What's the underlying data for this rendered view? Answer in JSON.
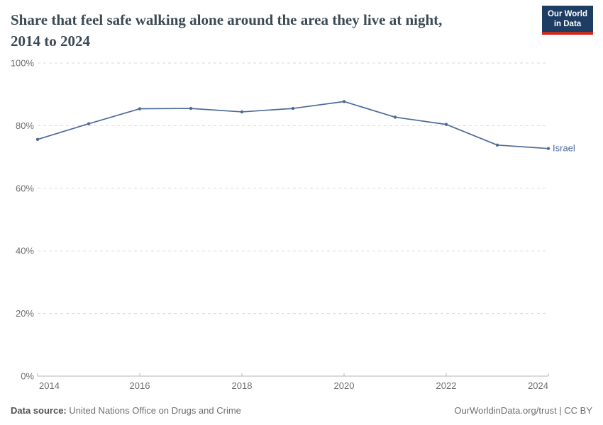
{
  "header": {
    "title_line1": "Share that feel safe walking alone around the area they live at night,",
    "title_line2": "2014 to 2024",
    "logo": {
      "line1": "Our World",
      "line2": "in Data"
    }
  },
  "chart_data": {
    "type": "line",
    "title": "Share that feel safe walking alone around the area they live at night, 2014 to 2024",
    "x": [
      2014,
      2015,
      2016,
      2017,
      2018,
      2019,
      2020,
      2021,
      2022,
      2023,
      2024
    ],
    "series": [
      {
        "name": "Israel",
        "values": [
          75.6,
          80.6,
          85.4,
          85.5,
          84.4,
          85.5,
          87.7,
          82.7,
          80.4,
          73.8,
          72.7
        ],
        "color": "#4c6a9c"
      }
    ],
    "xlabel": "",
    "ylabel": "",
    "ylim": [
      0,
      100
    ],
    "grid": "horizontal-dashed",
    "legend_position": "end-of-line",
    "yticks": {
      "values": [
        100,
        80,
        60,
        40,
        20,
        0
      ],
      "labels": [
        "100%",
        "80%",
        "60%",
        "40%",
        "20%",
        "0%"
      ]
    },
    "xticks": {
      "values": [
        2014,
        2016,
        2018,
        2020,
        2022,
        2024
      ],
      "labels": [
        "2014",
        "2016",
        "2018",
        "2020",
        "2022",
        "2024"
      ]
    }
  },
  "footer": {
    "source_label": "Data source:",
    "source_text": " United Nations Office on Drugs and Crime",
    "credit": "OurWorldinData.org/trust | CC BY"
  },
  "colors": {
    "series_blue": "#4c6a9c",
    "title_text": "#3b4a54",
    "axis_text": "#6e6e6e",
    "gridline": "#dadada",
    "axis_line": "#b5b5b5",
    "logo_navy": "#1d3d63",
    "logo_red": "#cc2b1c"
  }
}
